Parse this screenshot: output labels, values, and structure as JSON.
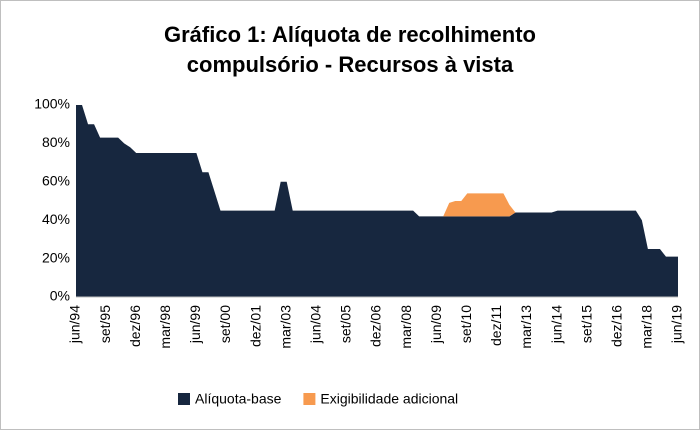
{
  "chart_data": {
    "type": "stacked_area",
    "title": [
      "Gráfico 1: Alíquota de recolhimento",
      "compulsório - Recursos à vista"
    ],
    "categories": [
      "jun/94",
      null,
      null,
      null,
      null,
      "set/95",
      null,
      null,
      null,
      null,
      "dez/96",
      null,
      null,
      null,
      null,
      "mar/98",
      null,
      null,
      null,
      null,
      "jun/99",
      null,
      null,
      null,
      null,
      "set/00",
      null,
      null,
      null,
      null,
      "dez/01",
      null,
      null,
      null,
      null,
      "mar/03",
      null,
      null,
      null,
      null,
      "jun/04",
      null,
      null,
      null,
      null,
      "set/05",
      null,
      null,
      null,
      null,
      "dez/06",
      null,
      null,
      null,
      null,
      "mar/08",
      null,
      null,
      null,
      null,
      "jun/09",
      null,
      null,
      null,
      null,
      "set/10",
      null,
      null,
      null,
      null,
      "dez/11",
      null,
      null,
      null,
      null,
      "mar/13",
      null,
      null,
      null,
      null,
      "jun/14",
      null,
      null,
      null,
      null,
      "set/15",
      null,
      null,
      null,
      null,
      "dez/16",
      null,
      null,
      null,
      null,
      "mar/18",
      null,
      null,
      null,
      null,
      "jun/19"
    ],
    "series": [
      {
        "name": "Alíquota-base",
        "color": "#17273f",
        "values": [
          100,
          100,
          90,
          90,
          83,
          83,
          83,
          83,
          80,
          78,
          75,
          75,
          75,
          75,
          75,
          75,
          75,
          75,
          75,
          75,
          75,
          65,
          65,
          55,
          45,
          45,
          45,
          45,
          45,
          45,
          45,
          45,
          45,
          45,
          60,
          60,
          45,
          45,
          45,
          45,
          45,
          45,
          45,
          45,
          45,
          45,
          45,
          45,
          45,
          45,
          45,
          45,
          45,
          45,
          45,
          45,
          45,
          42,
          42,
          42,
          42,
          42,
          42,
          42,
          42,
          42,
          42,
          42,
          42,
          42,
          42,
          42,
          42,
          44,
          44,
          44,
          44,
          44,
          44,
          44,
          45,
          45,
          45,
          45,
          45,
          45,
          45,
          45,
          45,
          45,
          45,
          45,
          45,
          45,
          40,
          25,
          25,
          25,
          21,
          21,
          21
        ]
      },
      {
        "name": "Exigibilidade adicional",
        "color": "#f79a4f",
        "values": [
          0,
          0,
          0,
          0,
          0,
          0,
          0,
          0,
          0,
          0,
          0,
          0,
          0,
          0,
          0,
          0,
          0,
          0,
          0,
          0,
          0,
          0,
          0,
          0,
          0,
          0,
          0,
          0,
          0,
          0,
          0,
          0,
          0,
          0,
          0,
          0,
          0,
          0,
          0,
          0,
          0,
          0,
          0,
          0,
          0,
          0,
          0,
          0,
          0,
          0,
          0,
          0,
          0,
          0,
          0,
          0,
          0,
          0,
          0,
          0,
          0,
          0,
          7,
          8,
          8,
          12,
          12,
          12,
          12,
          12,
          12,
          12,
          6,
          0,
          0,
          0,
          0,
          0,
          0,
          0,
          0,
          0,
          0,
          0,
          0,
          0,
          0,
          0,
          0,
          0,
          0,
          0,
          0,
          0,
          0,
          0,
          0,
          0,
          0,
          0,
          0
        ]
      }
    ],
    "ylim": [
      0,
      100
    ],
    "yticks": [
      {
        "value": 0,
        "label": "0%"
      },
      {
        "value": 20,
        "label": "20%"
      },
      {
        "value": 40,
        "label": "40%"
      },
      {
        "value": 60,
        "label": "60%"
      },
      {
        "value": 80,
        "label": "80%"
      },
      {
        "value": 100,
        "label": "100%"
      }
    ],
    "legend": "bottom"
  }
}
